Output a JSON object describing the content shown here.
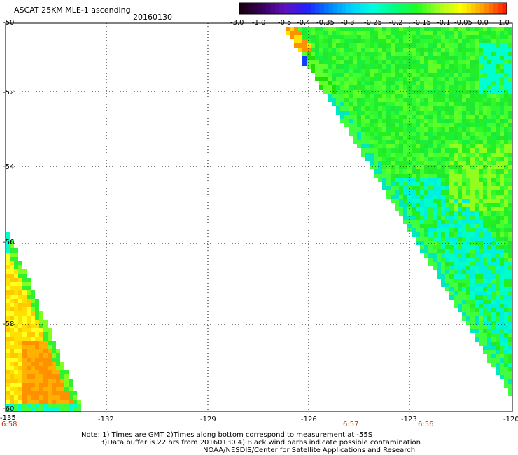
{
  "header": {
    "title": "ASCAT 25KM MLE-1 ascending",
    "date": "20160130"
  },
  "colorbar": {
    "labels": [
      "-3.0",
      "-1.0",
      "-0.5",
      "-0.4",
      "-0.35",
      "-0.3",
      "-0.25",
      "-0.2",
      "-0.15",
      "-0.1",
      "-0.05",
      "0.0",
      "1.0"
    ],
    "colors": [
      "#1a0010",
      "#3a0060",
      "#6010c0",
      "#2020ff",
      "#0080ff",
      "#00d0ff",
      "#00ffe0",
      "#00ff80",
      "#20ff20",
      "#a0ff20",
      "#ffff00",
      "#ffa000",
      "#ff2000"
    ]
  },
  "axes": {
    "x_ticks": [
      "-135",
      "-132",
      "-129",
      "-126",
      "-123",
      "-120"
    ],
    "y_ticks": [
      "-50",
      "-52",
      "-54",
      "-56",
      "-58",
      "-60"
    ]
  },
  "times": [
    "6:58",
    "6:57",
    "6:56"
  ],
  "notes": [
    "Note: 1) Times are GMT 2)Times along bottom correspond to measurement at -55S",
    "3)Data buffer is 22 hrs from 20160130 4) Black wind barbs indicate possible contamination",
    "NOAA/NESDIS/Center for Satellite Applications and Research"
  ]
}
